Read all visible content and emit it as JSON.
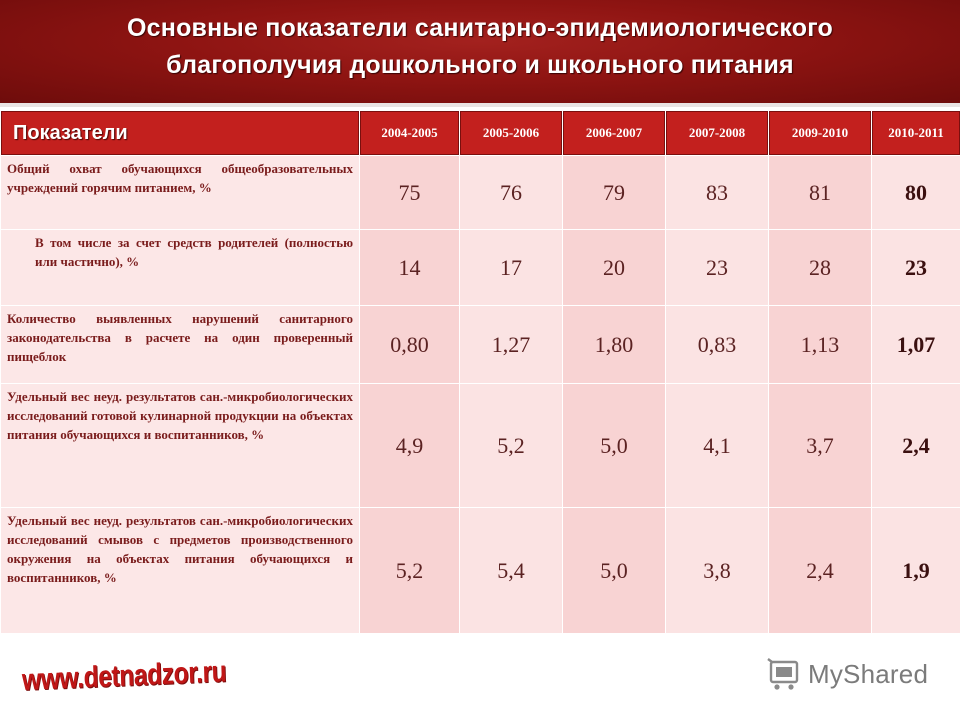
{
  "title": {
    "line1": "Основные показатели санитарно-эпидемиологического",
    "line2": "благополучия дошкольного и школьного питания"
  },
  "table": {
    "header_label": "Показатели",
    "years": [
      "2004-2005",
      "2005-2006",
      "2006-2007",
      "2007-2008",
      "2009-2010",
      "2010-2011"
    ],
    "rows": [
      {
        "label": "Общий охват обучающихся общеобразовательных учреждений горячим питанием, %",
        "values": [
          "75",
          "76",
          "79",
          "83",
          "81",
          "80"
        ]
      },
      {
        "label": "В том числе за счет средств родителей (полностью или частично), %",
        "values": [
          "14",
          "17",
          "20",
          "23",
          "28",
          "23"
        ]
      },
      {
        "label": "Количество выявленных нарушений санитарного законодательства в расчете на один проверенный пищеблок",
        "values": [
          "0,80",
          "1,27",
          "1,80",
          "0,83",
          "1,13",
          "1,07"
        ]
      },
      {
        "label": "Удельный вес неуд. результатов сан.-микробиологических исследований готовой кулинарной продукции на объектах питания обучающихся и воспитанников, %",
        "values": [
          "4,9",
          "5,2",
          "5,0",
          "4,1",
          "3,7",
          "2,4"
        ]
      },
      {
        "label": "Удельный вес неуд. результатов сан.-микробиологических исследований смывов с предметов производственного окружения на объектах питания обучающихся и воспитанников, %",
        "values": [
          "5,2",
          "5,4",
          "5,0",
          "3,8",
          "2,4",
          "1,9"
        ]
      }
    ]
  },
  "footer": {
    "site": "www.detnadzor.ru",
    "brand": "MyShared",
    "brand_icon": "shopping-cart-icon"
  },
  "colors": {
    "title_bg": "#8e1412",
    "header_bg": "#c3201e",
    "cell_light": "#fbe3e3",
    "cell_dark": "#f8d3d3",
    "site_text": "#c01717"
  }
}
